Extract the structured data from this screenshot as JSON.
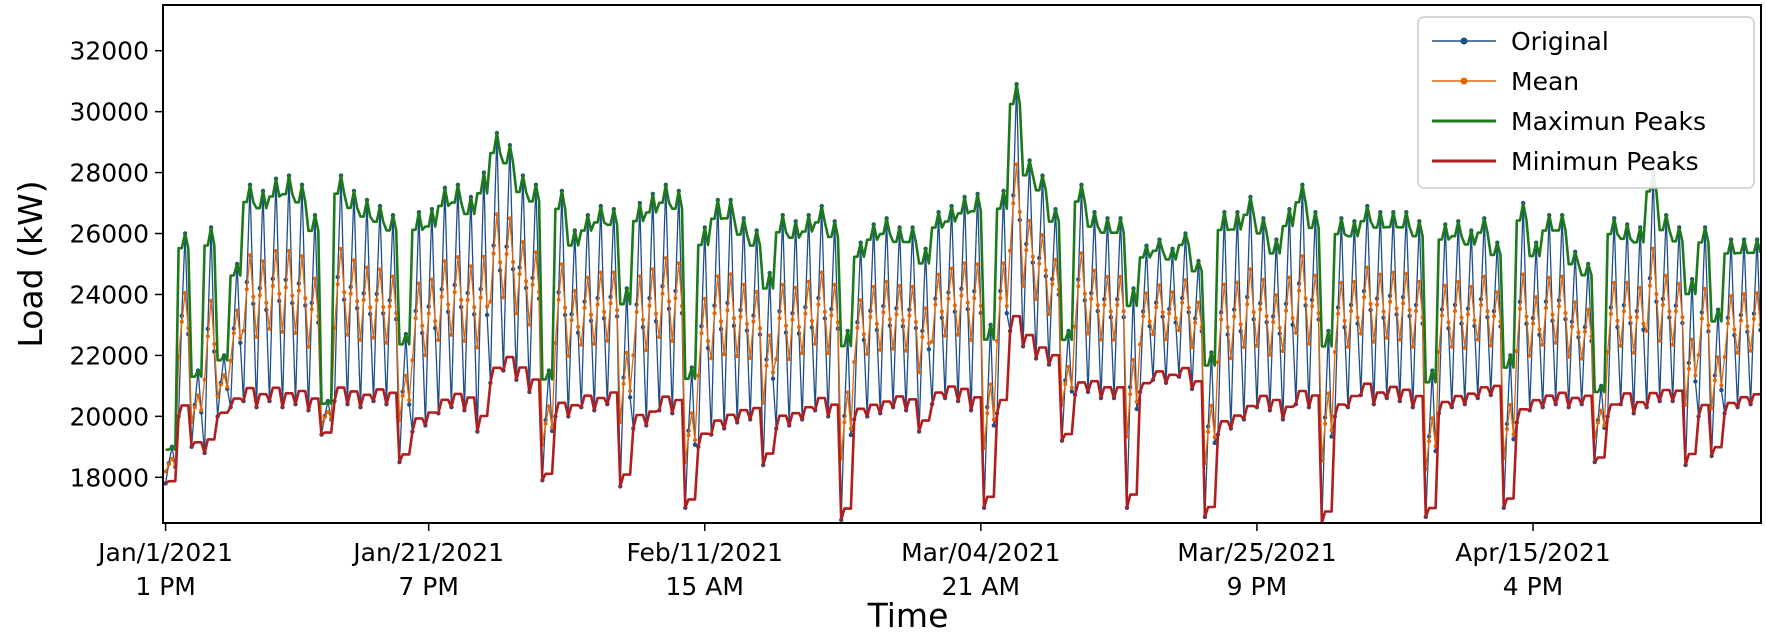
{
  "chart_data": {
    "type": "line",
    "title": "",
    "xlabel": "Time",
    "ylabel": "Load (kW)",
    "ylim": [
      16500,
      33500
    ],
    "xlim": [
      -0.2,
      122.8
    ],
    "y_ticks": [
      18000,
      20000,
      22000,
      24000,
      26000,
      28000,
      30000,
      32000
    ],
    "x_ticks": [
      {
        "x": 0,
        "line1": "Jan/1/2021",
        "line2": "1 PM"
      },
      {
        "x": 20.25,
        "line1": "Jan/21/2021",
        "line2": "7 PM"
      },
      {
        "x": 41.5,
        "line1": "Feb/11/2021",
        "line2": "15 AM"
      },
      {
        "x": 62.75,
        "line1": "Mar/04/2021",
        "line2": "21 AM"
      },
      {
        "x": 84,
        "line1": "Mar/25/2021",
        "line2": "9 PM"
      },
      {
        "x": 105.25,
        "line1": "Apr/15/2021",
        "line2": "4 PM"
      }
    ],
    "x_units": "days since Jan/1/2021",
    "sample_step_days": 0.25,
    "legend_placement": "top-right",
    "series_colors": {
      "original": "#1f4e89",
      "mean": "#e0660a",
      "max": "#1c7a1c",
      "min": "#b01f1f"
    },
    "series": [
      {
        "name": "Original",
        "key": "original",
        "marker": "dot"
      },
      {
        "name": "Mean",
        "key": "mean",
        "marker": "dot"
      },
      {
        "name": "Maximun Peaks",
        "key": "max",
        "marker": "none"
      },
      {
        "name": "Minimun Peaks",
        "key": "min",
        "marker": "none"
      }
    ],
    "daily_envelope": {
      "days": [
        0,
        1,
        2,
        3,
        4,
        5,
        6,
        7,
        8,
        9,
        10,
        11,
        12,
        13,
        14,
        15,
        16,
        17,
        18,
        19,
        20,
        21,
        22,
        23,
        24,
        25,
        26,
        27,
        28,
        29,
        30,
        31,
        32,
        33,
        34,
        35,
        36,
        37,
        38,
        39,
        40,
        41,
        42,
        43,
        44,
        45,
        46,
        47,
        48,
        49,
        50,
        51,
        52,
        53,
        54,
        55,
        56,
        57,
        58,
        59,
        60,
        61,
        62,
        63,
        64,
        65,
        66,
        67,
        68,
        69,
        70,
        71,
        72,
        73,
        74,
        75,
        76,
        77,
        78,
        79,
        80,
        81,
        82,
        83,
        84,
        85,
        86,
        87,
        88,
        89,
        90,
        91,
        92,
        93,
        94,
        95,
        96,
        97,
        98,
        99,
        100,
        101,
        102,
        103,
        104,
        105,
        106,
        107,
        108,
        109,
        110,
        111,
        112,
        113,
        114,
        115,
        116,
        117,
        118,
        119,
        120,
        121,
        122
      ],
      "max": [
        19000,
        26000,
        21500,
        26200,
        22000,
        25000,
        27600,
        27400,
        27800,
        27900,
        27600,
        26600,
        20500,
        27900,
        27400,
        27100,
        26900,
        26600,
        22700,
        26700,
        26800,
        27500,
        27600,
        27200,
        28000,
        29300,
        28900,
        27900,
        27600,
        21500,
        27400,
        26100,
        26600,
        26900,
        26800,
        24200,
        27000,
        27300,
        27600,
        27400,
        21600,
        26200,
        27100,
        27100,
        26500,
        26100,
        24700,
        26600,
        26400,
        26600,
        26900,
        26400,
        22800,
        25700,
        26300,
        26500,
        26200,
        26200,
        25500,
        26700,
        26900,
        27200,
        27300,
        23000,
        27400,
        30900,
        28400,
        27900,
        26800,
        22800,
        27600,
        26700,
        26500,
        26500,
        24200,
        25600,
        25800,
        25500,
        26000,
        25100,
        22100,
        26700,
        26700,
        27200,
        26500,
        25800,
        26800,
        27600,
        26700,
        22800,
        26500,
        26400,
        26900,
        26700,
        26700,
        26700,
        26400,
        21500,
        26300,
        26400,
        26100,
        26500,
        25700,
        22000,
        27000,
        25700,
        26600,
        26600,
        25400,
        25000,
        21000,
        26500,
        26300,
        26200,
        28000,
        26600,
        26200,
        24500,
        26200,
        23500,
        25800,
        25800,
        25800
      ],
      "min": [
        17800,
        20000,
        19000,
        18800,
        20000,
        20300,
        20500,
        20300,
        20500,
        20300,
        20400,
        20200,
        19400,
        20500,
        20400,
        20300,
        20500,
        20400,
        18500,
        19500,
        19700,
        20100,
        20300,
        20200,
        19500,
        21100,
        21500,
        21200,
        20800,
        17900,
        20000,
        20000,
        20300,
        20200,
        20400,
        17700,
        19600,
        19700,
        20200,
        20100,
        17000,
        19000,
        19400,
        19600,
        19800,
        19900,
        18400,
        19600,
        19700,
        19900,
        20200,
        20000,
        16600,
        19900,
        20000,
        20100,
        20300,
        20200,
        19500,
        20400,
        20600,
        20500,
        20200,
        17000,
        20100,
        22800,
        22300,
        21900,
        21700,
        19200,
        20700,
        20800,
        20600,
        20600,
        17000,
        20800,
        21200,
        21100,
        21300,
        20900,
        16700,
        19400,
        19600,
        19900,
        20300,
        20200,
        19900,
        20400,
        20300,
        16500,
        20000,
        20300,
        20700,
        20400,
        20600,
        20500,
        20300,
        16700,
        20100,
        20300,
        20400,
        20600,
        20700,
        17000,
        19800,
        20200,
        20300,
        20400,
        20300,
        20400,
        18500,
        20000,
        20400,
        20100,
        20300,
        20500,
        20500,
        18400,
        20000,
        18700,
        20100,
        20300,
        20400
      ]
    }
  },
  "legend": {
    "original_label": "Original",
    "mean_label": "Mean",
    "max_label": "Maximun Peaks",
    "min_label": "Minimun Peaks"
  }
}
